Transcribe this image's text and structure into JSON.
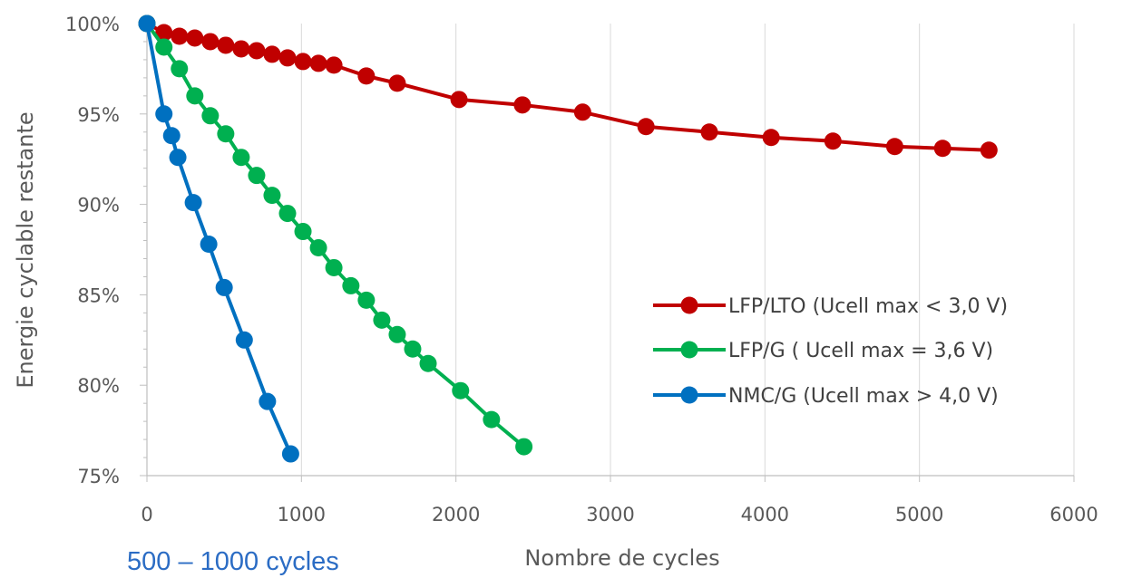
{
  "chart_data": {
    "type": "line",
    "title": "",
    "xlabel": "Nombre de cycles",
    "ylabel": "Energie cyclable restante",
    "xlim": [
      0,
      6000
    ],
    "ylim": [
      75,
      100
    ],
    "x_ticks": [
      0,
      1000,
      2000,
      3000,
      4000,
      5000,
      6000
    ],
    "x_tick_labels": [
      "0",
      "1000",
      "2000",
      "3000",
      "4000",
      "5000",
      "6000"
    ],
    "y_ticks": [
      75,
      80,
      85,
      90,
      95,
      100
    ],
    "y_tick_labels": [
      "75%",
      "80%",
      "85%",
      "90%",
      "95%",
      "100%"
    ],
    "grid": "vertical",
    "legend_position": "right-center",
    "series": [
      {
        "name": "LFP/LTO (Ucell max < 3,0 V)",
        "color": "#c00000",
        "x": [
          0,
          110,
          210,
          310,
          410,
          510,
          610,
          710,
          810,
          910,
          1010,
          1110,
          1210,
          1420,
          1620,
          2020,
          2430,
          2820,
          3230,
          3640,
          4040,
          4440,
          4840,
          5150,
          5450
        ],
        "y": [
          100,
          99.5,
          99.3,
          99.2,
          99.0,
          98.8,
          98.6,
          98.5,
          98.3,
          98.1,
          97.9,
          97.8,
          97.7,
          97.1,
          96.7,
          95.8,
          95.5,
          95.1,
          94.3,
          94.0,
          93.7,
          93.5,
          93.2,
          93.1,
          93.0
        ]
      },
      {
        "name": "LFP/G ( Ucell max = 3,6 V)",
        "color": "#00b050",
        "x": [
          0,
          110,
          210,
          310,
          410,
          510,
          610,
          710,
          810,
          910,
          1010,
          1110,
          1210,
          1320,
          1420,
          1520,
          1620,
          1720,
          1820,
          2030,
          2230,
          2440
        ],
        "y": [
          100,
          98.7,
          97.5,
          96.0,
          94.9,
          93.9,
          92.6,
          91.6,
          90.5,
          89.5,
          88.5,
          87.6,
          86.5,
          85.5,
          84.7,
          83.6,
          82.8,
          82.0,
          81.2,
          79.7,
          78.1,
          76.6
        ]
      },
      {
        "name": "NMC/G (Ucell max > 4,0 V)",
        "color": "#0070c0",
        "x": [
          0,
          110,
          160,
          200,
          300,
          400,
          500,
          630,
          780,
          930
        ],
        "y": [
          100,
          95.0,
          93.8,
          92.6,
          90.1,
          87.8,
          85.4,
          82.5,
          79.1,
          76.2
        ]
      }
    ]
  },
  "annotation": "500 – 1000 cycles"
}
